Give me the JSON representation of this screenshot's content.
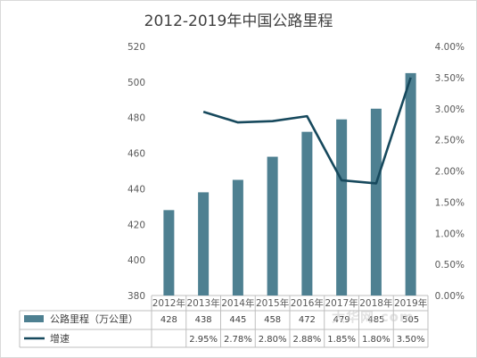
{
  "chart_data": {
    "type": "bar",
    "title": "2012-2019年中国公路里程",
    "categories": [
      "2012年",
      "2013年",
      "2014年",
      "2015年",
      "2016年",
      "2017年",
      "2018年",
      "2019年"
    ],
    "series": [
      {
        "name": "公路里程（万公里）",
        "type": "bar",
        "axis": "left",
        "color": "#4e8091",
        "values": [
          428,
          438,
          445,
          458,
          472,
          479,
          485,
          505
        ],
        "table_labels": [
          "428",
          "438",
          "445",
          "458",
          "472",
          "479",
          "485",
          "505"
        ]
      },
      {
        "name": "增速",
        "type": "line",
        "axis": "right",
        "color": "#17495d",
        "values": [
          null,
          2.95,
          2.78,
          2.8,
          2.88,
          1.85,
          1.8,
          3.5
        ],
        "table_labels": [
          "",
          "2.95%",
          "2.78%",
          "2.80%",
          "2.88%",
          "1.85%",
          "1.80%",
          "3.50%"
        ]
      }
    ],
    "left_axis": {
      "ylim": [
        380,
        520
      ],
      "ticks": [
        380,
        400,
        420,
        440,
        460,
        480,
        500,
        520
      ]
    },
    "right_axis": {
      "ylim": [
        0,
        4
      ],
      "ticks": [
        "0.00%",
        "0.50%",
        "1.00%",
        "1.50%",
        "2.00%",
        "2.50%",
        "3.00%",
        "3.50%",
        "4.00%"
      ]
    },
    "grid": false,
    "legend": "data-table-left"
  },
  "watermark": "大华网.com"
}
